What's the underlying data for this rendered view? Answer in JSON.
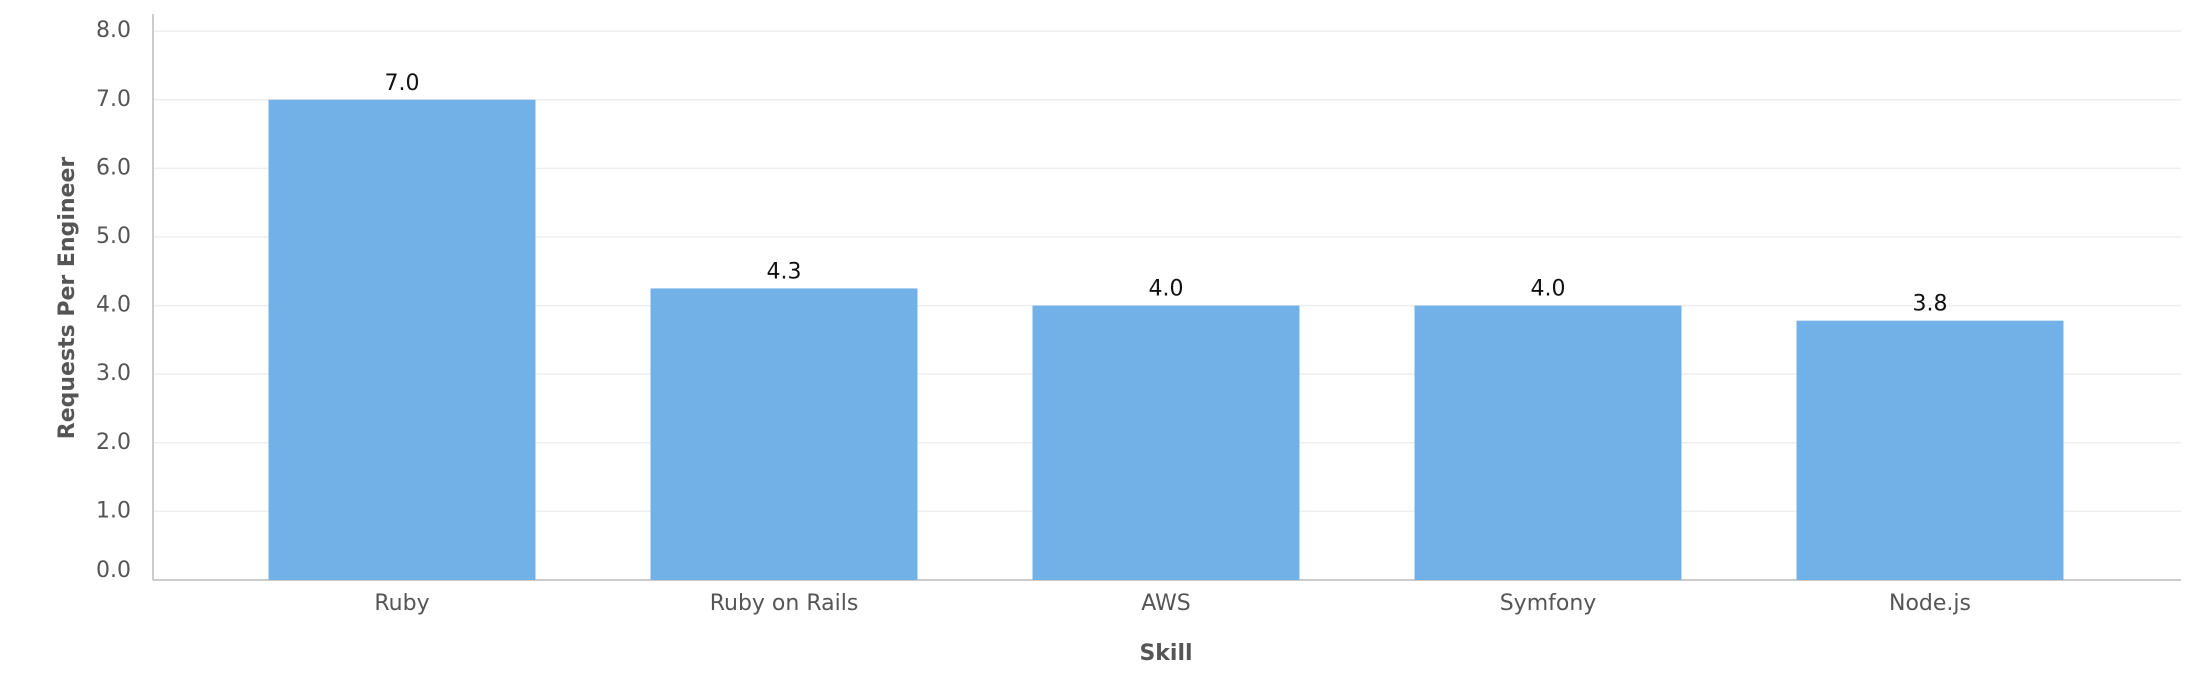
{
  "chart_data": {
    "type": "bar",
    "x_label": "Skill",
    "y_label": "Requests Per Engineer",
    "categories": [
      "Ruby",
      "Ruby on Rails",
      "AWS",
      "Symfony",
      "Node.js"
    ],
    "values": [
      7.0,
      4.25,
      4.0,
      4.0,
      3.78
    ],
    "value_labels": [
      "7.0",
      "4.3",
      "4.0",
      "4.0",
      "3.8"
    ],
    "color": "#72b1e8",
    "ylim": [
      0,
      8.25
    ],
    "yticks": [
      {
        "value": 0,
        "label": "0.0"
      },
      {
        "value": 1,
        "label": "1.0"
      },
      {
        "value": 2,
        "label": "2.0"
      },
      {
        "value": 3,
        "label": "3.0"
      },
      {
        "value": 4,
        "label": "4.0"
      },
      {
        "value": 5,
        "label": "5.0"
      },
      {
        "value": 6,
        "label": "6.0"
      },
      {
        "value": 7,
        "label": "7.0"
      },
      {
        "value": 8,
        "label": "8.0"
      }
    ],
    "grid": true
  }
}
